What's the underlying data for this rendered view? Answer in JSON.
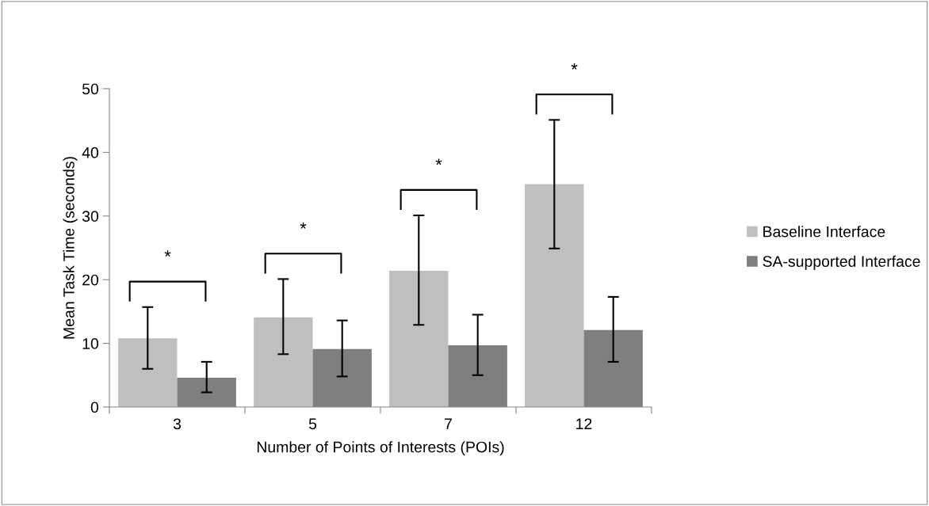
{
  "chart_data": {
    "type": "bar",
    "xlabel": "Number of Points of Interests (POIs)",
    "ylabel": "Mean Task Time (seconds)",
    "categories": [
      "3",
      "5",
      "7",
      "12"
    ],
    "series": [
      {
        "name": "Baseline Interface",
        "color": "#bfbfbf",
        "values": [
          10.8,
          14.1,
          21.4,
          35.0
        ],
        "errors": [
          [
            6.0,
            15.7
          ],
          [
            8.3,
            20.1
          ],
          [
            12.9,
            30.1
          ],
          [
            24.9,
            45.1
          ]
        ]
      },
      {
        "name": "SA-supported Interface",
        "color": "#7f7f7f",
        "values": [
          4.6,
          9.1,
          9.7,
          12.1
        ],
        "errors": [
          [
            2.3,
            7.1
          ],
          [
            4.8,
            13.6
          ],
          [
            5.0,
            14.5
          ],
          [
            7.1,
            17.3
          ]
        ]
      }
    ],
    "annotations": [
      "*",
      "*",
      "*",
      "*"
    ],
    "ylim": [
      0,
      50
    ],
    "yticks": [
      0,
      10,
      20,
      30,
      40,
      50
    ],
    "grid": false,
    "legend": "right"
  }
}
